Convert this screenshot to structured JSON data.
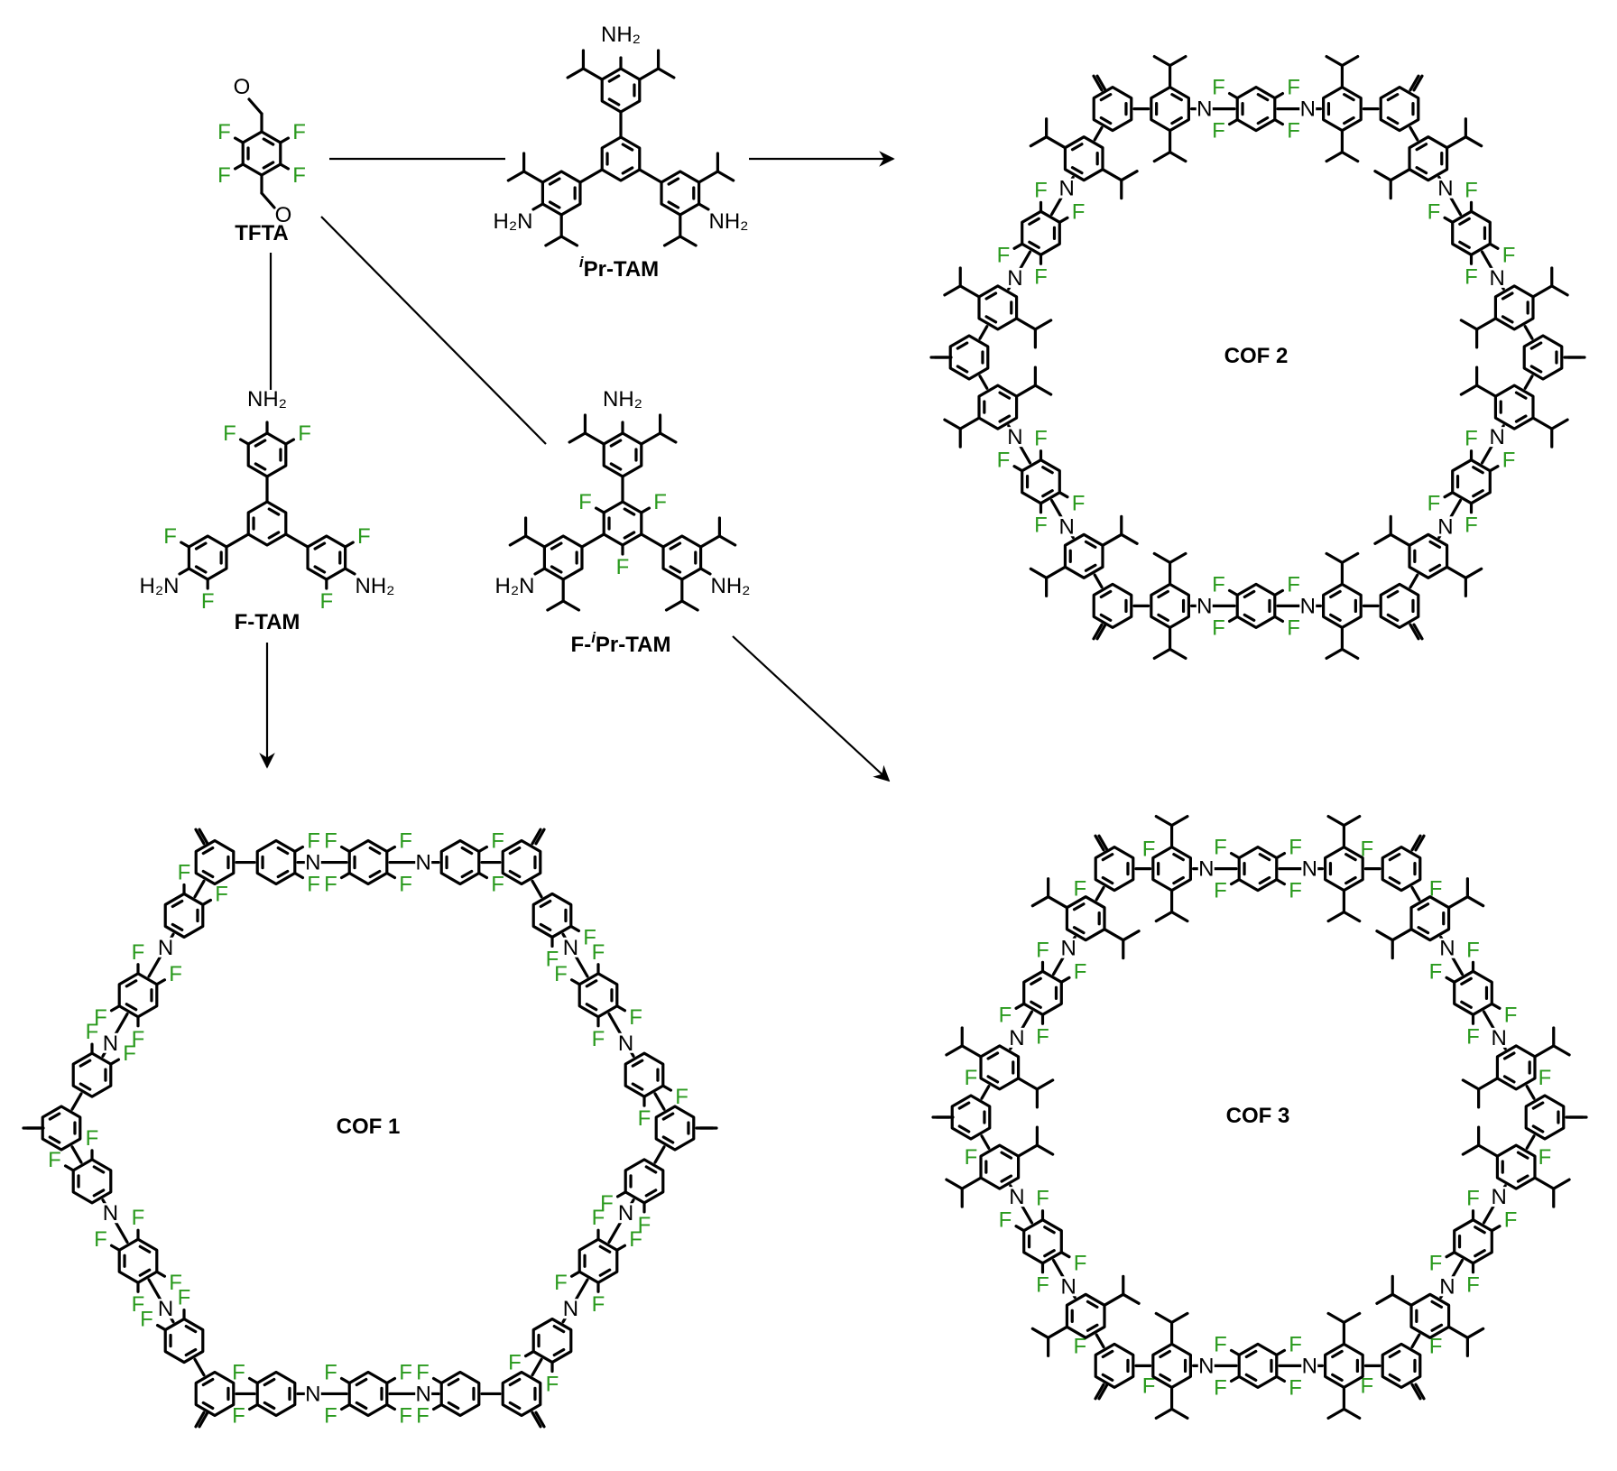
{
  "colors": {
    "bond": "#000000",
    "fluorine": "#2a9a1e",
    "text": "#000000"
  },
  "labels": {
    "tfta": "TFTA",
    "ipr_tam_italic": "i",
    "ipr_tam_rest": "Pr-TAM",
    "f_tam": "F-TAM",
    "f_ipr_tam_prefix": "F-",
    "f_ipr_tam_italic": "i",
    "f_ipr_tam_rest": "Pr-TAM",
    "cof1": "COF 1",
    "cof2": "COF 2",
    "cof3": "COF 3"
  },
  "atoms": {
    "N": "N",
    "F": "F",
    "O": "O",
    "NH2": "NH₂",
    "H2N": "H₂N"
  }
}
